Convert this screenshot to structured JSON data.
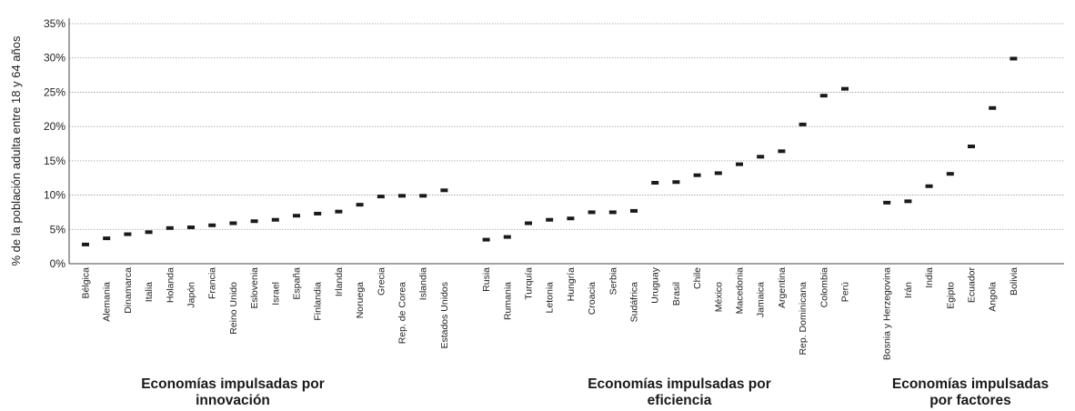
{
  "chart_data": {
    "type": "scatter",
    "ylabel": "% de la población adulta entre 18 y 64 años",
    "ylim": [
      0,
      35
    ],
    "yticks": [
      "0%",
      "5%",
      "10%",
      "15%",
      "20%",
      "25%",
      "30%",
      "35%"
    ],
    "grid": true,
    "categories": [
      "Bélgica",
      "Alemania",
      "Dinamarca",
      "Italia",
      "Holanda",
      "Japón",
      "Francia",
      "Reino Unido",
      "Eslovenia",
      "Israel",
      "España",
      "Finlandia",
      "Irlanda",
      "Noruega",
      "Grecia",
      "Rep. de Corea",
      "Islandia",
      "Estados Unidos",
      "Rusia",
      "Rumania",
      "Turquía",
      "Letonia",
      "Hungría",
      "Croacia",
      "Serbia",
      "Sudáfrica",
      "Uruguay",
      "Brasil",
      "Chile",
      "México",
      "Macedonia",
      "Jamaica",
      "Argentina",
      "Rep. Dominicana",
      "Colombia",
      "Perú",
      "Bosnia y Herzegovina",
      "Irán",
      "India",
      "Egipto",
      "Ecuador",
      "Angola",
      "Bolivia"
    ],
    "values": [
      2.8,
      3.7,
      4.3,
      4.6,
      5.2,
      5.3,
      5.6,
      5.9,
      6.2,
      6.4,
      7.0,
      7.3,
      7.6,
      8.6,
      9.8,
      9.9,
      9.9,
      10.7,
      3.5,
      3.9,
      5.9,
      6.4,
      6.6,
      7.5,
      7.5,
      7.7,
      11.8,
      11.9,
      12.9,
      13.2,
      14.5,
      15.6,
      16.4,
      20.3,
      24.5,
      25.5,
      8.9,
      9.1,
      11.3,
      13.1,
      17.1,
      22.7,
      29.9
    ],
    "groups": [
      {
        "label_line1": "Economías impulsadas por",
        "label_line2": "innovación",
        "count": 18
      },
      {
        "label_line1": "Economías impulsadas por",
        "label_line2": "eficiencia",
        "count": 18
      },
      {
        "label_line1": "Economías impulsadas",
        "label_line2": "por factores",
        "count": 7
      }
    ],
    "marker_color": "#1a1a1a"
  }
}
